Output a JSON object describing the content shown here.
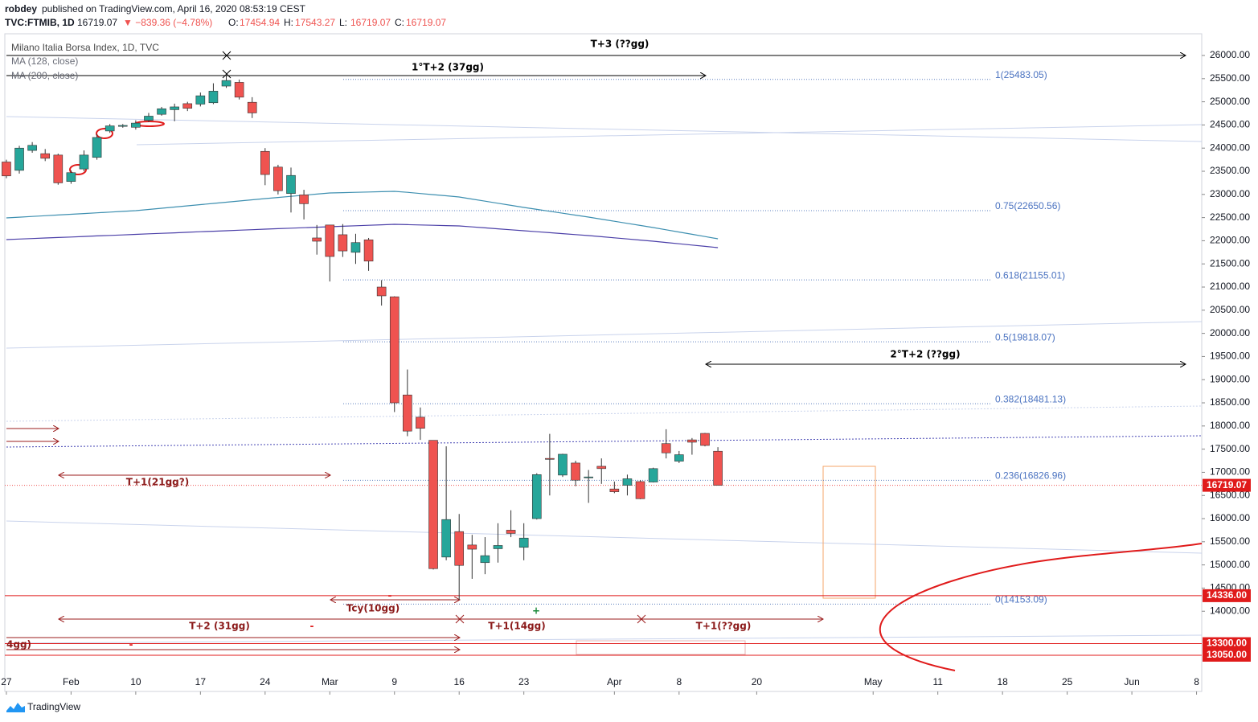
{
  "header": {
    "author": "robdey",
    "published": "published on TradingView.com, April 16, 2020 08:53:19 CEST",
    "symbol": "TVC:FTMIB, 1D",
    "last": "16719.07",
    "change": "▼ −839.36 (−4.78%)",
    "ohlc": [
      {
        "label": "O:",
        "value": "17454.94"
      },
      {
        "label": "H:",
        "value": "17543.27"
      },
      {
        "label": "L:",
        "value": "16719.07"
      },
      {
        "label": "C:",
        "value": "16719.07"
      }
    ]
  },
  "chart_data": {
    "type": "candlestick",
    "legend_title": "Milano Italia Borsa Index, 1D, TVC",
    "up_color": "#26a69a",
    "down_color": "#ef5350",
    "candles": {
      "open": [
        23700,
        23520,
        23950,
        23880,
        23850,
        23280,
        23550,
        23800,
        24370,
        24470,
        24450,
        24600,
        24730,
        24830,
        24960,
        24950,
        24980,
        25340,
        25420,
        24990,
        23930,
        23590,
        23020,
        22990,
        22060,
        22340,
        22130,
        21750,
        22020,
        21000,
        20790,
        18670,
        18190,
        17690,
        15170,
        15720,
        15430,
        15050,
        15350,
        15750,
        15380,
        16000,
        17300,
        16940,
        17200,
        16880,
        17130,
        16640,
        16720,
        16800,
        16790,
        17620,
        17240,
        17700,
        17840,
        17454.94
      ],
      "high": [
        23750,
        24050,
        24130,
        23980,
        23880,
        23520,
        23950,
        24300,
        24520,
        24520,
        24600,
        24760,
        24890,
        24960,
        25000,
        25200,
        25400,
        25560,
        25480,
        25100,
        24000,
        23640,
        23580,
        23100,
        22340,
        22340,
        22360,
        22150,
        22060,
        21150,
        20800,
        19220,
        18400,
        17690,
        17560,
        16100,
        15650,
        15600,
        15900,
        16180,
        15900,
        16980,
        17830,
        17400,
        17250,
        17050,
        17300,
        16800,
        16950,
        16830,
        17100,
        17930,
        17460,
        17740,
        17850,
        17543.27
      ],
      "low": [
        23350,
        23450,
        23900,
        23720,
        23210,
        23230,
        23500,
        23750,
        24330,
        24440,
        24400,
        24560,
        24700,
        24580,
        24800,
        24900,
        24950,
        25300,
        25050,
        24650,
        23200,
        23000,
        22610,
        22460,
        21700,
        21120,
        21650,
        21500,
        21350,
        20600,
        18300,
        17780,
        17700,
        14900,
        15100,
        14250,
        14700,
        14800,
        15050,
        15600,
        15100,
        15980,
        16500,
        16900,
        16700,
        16340,
        16750,
        16550,
        16500,
        16420,
        16780,
        17300,
        17200,
        17380,
        17560,
        16719.07
      ],
      "close": [
        23400,
        24000,
        24060,
        23780,
        23250,
        23470,
        23850,
        24230,
        24480,
        24490,
        24540,
        24690,
        24850,
        24890,
        24860,
        25130,
        25230,
        25460,
        25100,
        24760,
        23430,
        23080,
        23410,
        22800,
        21990,
        21660,
        21780,
        21960,
        21560,
        20810,
        18500,
        17890,
        17950,
        14920,
        15980,
        14990,
        15340,
        15200,
        15420,
        15680,
        15580,
        16950,
        17280,
        17390,
        16830,
        16900,
        17080,
        16580,
        16860,
        16430,
        17080,
        17420,
        17380,
        17650,
        17580,
        16719.07
      ]
    },
    "series": [
      {
        "name": "MA (128, close)",
        "color": "#3d8fb0",
        "values": [
          22493,
          22509,
          22524,
          22540,
          22556,
          22571,
          22587,
          22603,
          22619,
          22634,
          22650,
          22676,
          22702,
          22728,
          22754,
          22780,
          22806,
          22832,
          22858,
          22884,
          22910,
          22934,
          22958,
          22983,
          23007,
          23031,
          23038,
          23045,
          23052,
          23059,
          23066,
          23045,
          23020,
          22995,
          22970,
          22945,
          22900,
          22855,
          22810,
          22765,
          22719,
          22677,
          22636,
          22594,
          22553,
          22511,
          22466,
          22421,
          22376,
          22330,
          22285,
          22236,
          22188,
          22139,
          22091,
          22042
        ]
      },
      {
        "name": "MA (200, close)",
        "color": "#4b3fa8",
        "values": [
          22025,
          22036,
          22048,
          22059,
          22070,
          22081,
          22093,
          22104,
          22115,
          22126,
          22138,
          22149,
          22160,
          22171,
          22183,
          22194,
          22205,
          22216,
          22228,
          22239,
          22250,
          22260,
          22271,
          22281,
          22292,
          22302,
          22312,
          22323,
          22333,
          22344,
          22354,
          22347,
          22340,
          22334,
          22327,
          22320,
          22299,
          22278,
          22258,
          22237,
          22216,
          22195,
          22174,
          22153,
          22132,
          22111,
          22087,
          22063,
          22038,
          22014,
          21990,
          21962,
          21934,
          21907,
          21879,
          21851
        ]
      }
    ],
    "xlim": [
      -0.12,
      92.4
    ],
    "xticks": [
      {
        "value": 0,
        "label": "27"
      },
      {
        "value": 5,
        "label": "Feb"
      },
      {
        "value": 10,
        "label": "10"
      },
      {
        "value": 15,
        "label": "17"
      },
      {
        "value": 20,
        "label": "24"
      },
      {
        "value": 25,
        "label": "Mar"
      },
      {
        "value": 30,
        "label": "9"
      },
      {
        "value": 35,
        "label": "16"
      },
      {
        "value": 40,
        "label": "23"
      },
      {
        "value": 47,
        "label": "Apr"
      },
      {
        "value": 52,
        "label": "8"
      },
      {
        "value": 58,
        "label": "20"
      },
      {
        "value": 67,
        "label": "May"
      },
      {
        "value": 72,
        "label": "11"
      },
      {
        "value": 77,
        "label": "18"
      },
      {
        "value": 82,
        "label": "25"
      },
      {
        "value": 87,
        "label": "Jun"
      },
      {
        "value": 92,
        "label": "8"
      }
    ],
    "ylim": [
      12268,
      26469
    ],
    "yticks": [
      {
        "value": 14000,
        "label": "14000.00"
      },
      {
        "value": 14500,
        "label": "14500.00"
      },
      {
        "value": 15000,
        "label": "15000.00"
      },
      {
        "value": 15500,
        "label": "15500.00"
      },
      {
        "value": 16000,
        "label": "16000.00"
      },
      {
        "value": 16500,
        "label": "16500.00"
      },
      {
        "value": 17000,
        "label": "17000.00"
      },
      {
        "value": 17500,
        "label": "17500.00"
      },
      {
        "value": 18000,
        "label": "18000.00"
      },
      {
        "value": 18500,
        "label": "18500.00"
      },
      {
        "value": 19000,
        "label": "19000.00"
      },
      {
        "value": 19500,
        "label": "19500.00"
      },
      {
        "value": 20000,
        "label": "20000.00"
      },
      {
        "value": 20500,
        "label": "20500.00"
      },
      {
        "value": 21000,
        "label": "21000.00"
      },
      {
        "value": 21500,
        "label": "21500.00"
      },
      {
        "value": 22000,
        "label": "22000.00"
      },
      {
        "value": 22500,
        "label": "22500.00"
      },
      {
        "value": 23000,
        "label": "23000.00"
      },
      {
        "value": 23500,
        "label": "23500.00"
      },
      {
        "value": 24000,
        "label": "24000.00"
      },
      {
        "value": 24500,
        "label": "24500.00"
      },
      {
        "value": 25000,
        "label": "25000.00"
      },
      {
        "value": 25500,
        "label": "25500.00"
      },
      {
        "value": 26000,
        "label": "26000.00"
      }
    ],
    "fib_levels": [
      {
        "value": 25483.05,
        "label": "1(25483.05)"
      },
      {
        "value": 22650.56,
        "label": "0.75(22650.56)"
      },
      {
        "value": 21155.01,
        "label": "0.618(21155.01)"
      },
      {
        "value": 19818.07,
        "label": "0.5(19818.07)"
      },
      {
        "value": 18481.13,
        "label": "0.382(18481.13)"
      },
      {
        "value": 16826.96,
        "label": "0.236(16826.96)"
      },
      {
        "value": 14153.09,
        "label": "0(14153.09)"
      }
    ],
    "price_tags": [
      {
        "value": 16719.07,
        "label": "16719.07"
      },
      {
        "value": 14336,
        "label": "14336.00"
      },
      {
        "value": 13300,
        "label": "13300.00"
      },
      {
        "value": 13050,
        "label": "13050.00"
      }
    ],
    "annotations": [
      "T+3 (??gg)",
      "1°T+2 (37gg)",
      "2°T+2 (??gg)",
      "T+1(21gg?)",
      "Tcy(10gg)",
      "T+2 (31gg)",
      "T+1(14gg)",
      "T+1(??gg)",
      "4gg)",
      "-",
      "-",
      "-",
      "+"
    ]
  },
  "footer": {
    "brand": "TradingView"
  }
}
